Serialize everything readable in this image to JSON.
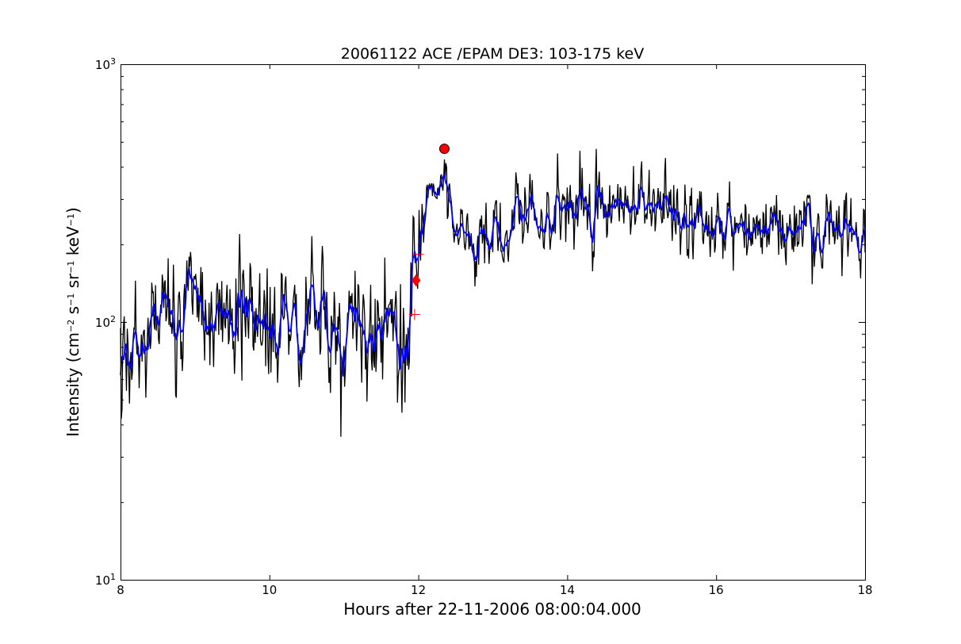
{
  "chart_data": {
    "type": "line",
    "title": "20061122 ACE /EPAM DE3: 103-175 keV",
    "xlabel": "Hours after 22-11-2006 08:00:04.000",
    "ylabel": {
      "main": "Intensity (cm",
      "e1": "−2",
      "s": " s",
      "e2": "−1",
      "sr": " sr",
      "e3": "−1",
      "kev": " keV",
      "e4": "−1",
      "close": ")"
    },
    "xlim": [
      8,
      18
    ],
    "ylim": [
      10,
      1000
    ],
    "yscale": "log",
    "x_ticks": [
      8,
      10,
      12,
      14,
      16,
      18
    ],
    "x_tick_labels": [
      "8",
      "10",
      "12",
      "14",
      "16",
      "18"
    ],
    "y_ticks": [
      10,
      100,
      1000
    ],
    "y_tick_labels": [
      {
        "base": "10",
        "exp": "1"
      },
      {
        "base": "10",
        "exp": "2"
      },
      {
        "base": "10",
        "exp": "3"
      }
    ],
    "grid": false,
    "segments": [
      {
        "x0": 8.0,
        "x1": 11.92,
        "mean": 100,
        "noise": 0.26
      },
      {
        "x0": 11.92,
        "x1": 12.0,
        "mean": 160,
        "noise": 0.15
      },
      {
        "x0": 12.0,
        "x1": 12.1,
        "mean": 240,
        "noise": 0.15
      },
      {
        "x0": 12.1,
        "x1": 12.38,
        "mean": 340,
        "noise": 0.1
      },
      {
        "x0": 12.38,
        "x1": 12.45,
        "mean": 280,
        "noise": 0.12
      },
      {
        "x0": 12.45,
        "x1": 13.3,
        "mean": 215,
        "noise": 0.15
      },
      {
        "x0": 13.3,
        "x1": 14.0,
        "mean": 250,
        "noise": 0.15
      },
      {
        "x0": 14.0,
        "x1": 15.6,
        "mean": 275,
        "noise": 0.15
      },
      {
        "x0": 15.6,
        "x1": 18.0,
        "mean": 235,
        "noise": 0.15
      }
    ],
    "series": [
      {
        "role": "raw",
        "color": "#000000",
        "step_hours": 0.01
      },
      {
        "role": "smoothed",
        "color": "#0000ff"
      }
    ],
    "markers": [
      {
        "shape": "circle",
        "x": 12.35,
        "y": 470,
        "color": "#ff0000"
      },
      {
        "shape": "diamond",
        "x": 11.97,
        "y": 145,
        "color": "#ff0000"
      },
      {
        "shape": "plus",
        "x": 12.0,
        "y": 183,
        "color": "#ff0000"
      },
      {
        "shape": "plus",
        "x": 11.95,
        "y": 107,
        "color": "#ff0000"
      }
    ]
  }
}
